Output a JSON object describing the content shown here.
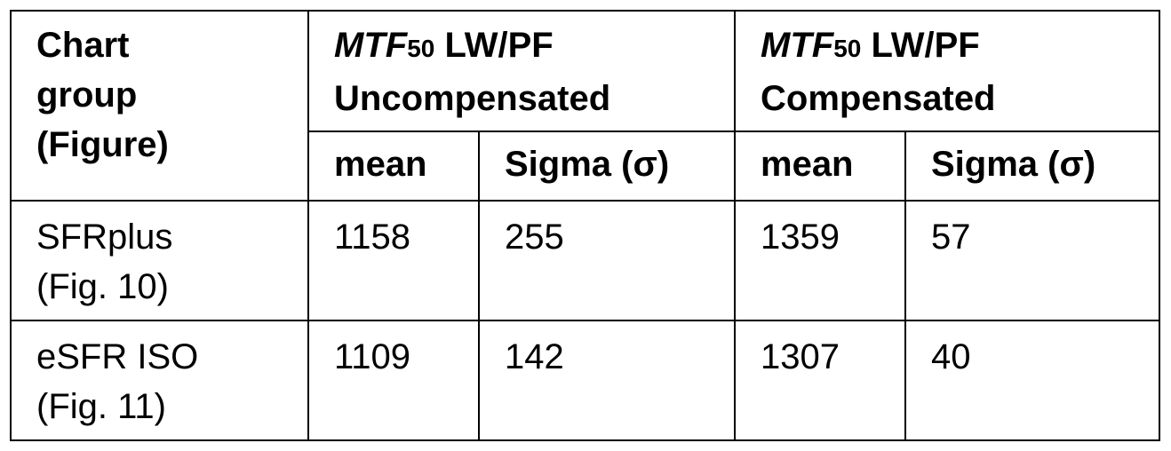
{
  "table": {
    "header": {
      "group_label": "Chart\ngroup\n(Figure)",
      "groups": [
        {
          "symbol": "MTF",
          "subscript": "50",
          "unit": "LW/PF",
          "label": "Uncompensated"
        },
        {
          "symbol": "MTF",
          "subscript": "50",
          "unit": "LW/PF",
          "label": "Compensated"
        }
      ],
      "columns": [
        "mean",
        "Sigma (σ)",
        "mean",
        "Sigma (σ)"
      ]
    },
    "rows": [
      [
        "SFRplus\n(Fig. 10)",
        1158,
        255,
        1359,
        57
      ],
      [
        "eSFR ISO\n(Fig. 11)",
        1109,
        142,
        1307,
        40
      ]
    ]
  }
}
